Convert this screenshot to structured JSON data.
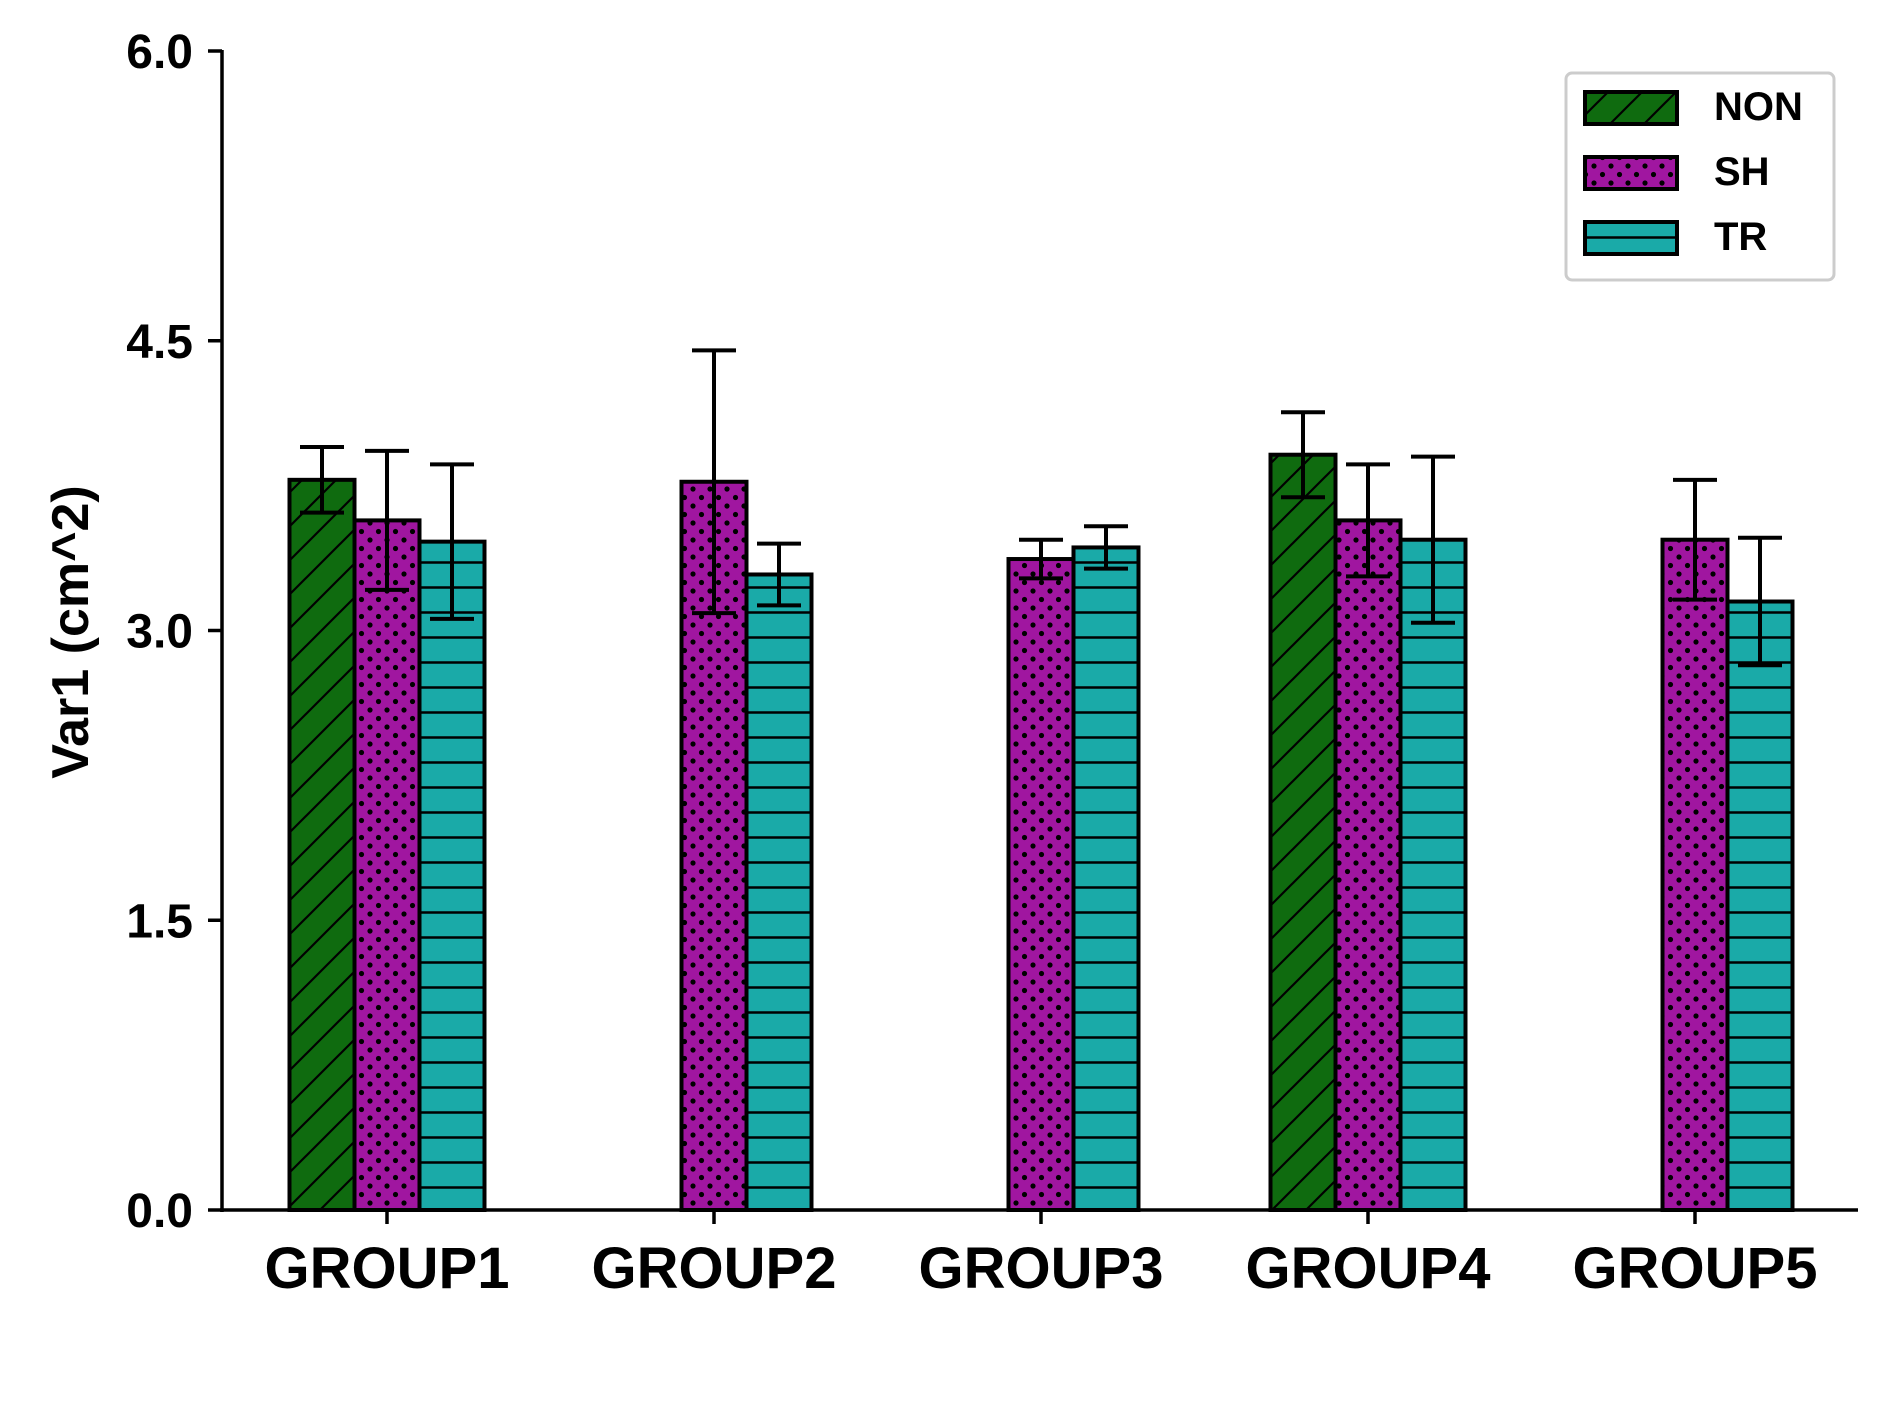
{
  "chart_data": {
    "type": "bar",
    "title": "",
    "xlabel": "",
    "ylabel": "Var1 (cm^2)",
    "ylim": [
      0,
      6.0
    ],
    "yticks": [
      "0.0",
      "1.5",
      "3.0",
      "4.5",
      "6.0"
    ],
    "ytick_values": [
      0,
      1.5,
      3.0,
      4.5,
      6.0
    ],
    "categories": [
      "GROUP1",
      "GROUP2",
      "GROUP3",
      "GROUP4",
      "GROUP5"
    ],
    "grid": false,
    "legend_position": "top-right",
    "series": [
      {
        "name": "NON",
        "color": "#0f6b0f",
        "hatch": "diagonal",
        "values": [
          3.78,
          null,
          null,
          3.91,
          null
        ],
        "errors": [
          0.17,
          null,
          null,
          0.22,
          null
        ]
      },
      {
        "name": "SH",
        "color": "#a016a0",
        "hatch": "dots",
        "values": [
          3.57,
          3.77,
          3.37,
          3.57,
          3.47
        ],
        "errors": [
          0.36,
          0.68,
          0.1,
          0.29,
          0.31
        ]
      },
      {
        "name": "TR",
        "color": "#1aaaa8",
        "hatch": "horizontal",
        "values": [
          3.46,
          3.29,
          3.43,
          3.47,
          3.15
        ],
        "errors": [
          0.4,
          0.16,
          0.11,
          0.43,
          0.33
        ]
      }
    ]
  }
}
